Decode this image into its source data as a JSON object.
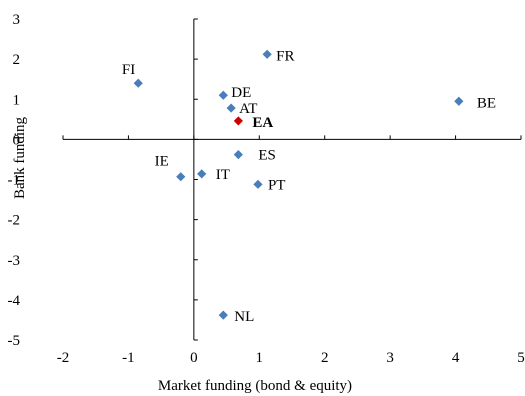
{
  "chart_data": {
    "type": "scatter",
    "title": "",
    "xlabel": "Market funding (bond & equity)",
    "ylabel": "Bank funding",
    "xlim": [
      -2,
      5
    ],
    "ylim": [
      -5,
      3
    ],
    "xticks": [
      "-2",
      "-1",
      "0",
      "1",
      "2",
      "3",
      "4",
      "5"
    ],
    "yticks": [
      "3",
      "2",
      "1",
      "0",
      "-1",
      "-2",
      "-3",
      "-4",
      "-5"
    ],
    "grid": false,
    "points": [
      {
        "label": "FI",
        "x": -0.85,
        "y": 1.4,
        "color": "#4a7ebb"
      },
      {
        "label": "FR",
        "x": 1.12,
        "y": 2.12,
        "color": "#4a7ebb"
      },
      {
        "label": "DE",
        "x": 0.45,
        "y": 1.1,
        "color": "#4a7ebb"
      },
      {
        "label": "AT",
        "x": 0.57,
        "y": 0.78,
        "color": "#4a7ebb"
      },
      {
        "label": "EA",
        "x": 0.68,
        "y": 0.46,
        "color": "#cc0000",
        "bold": true
      },
      {
        "label": "BE",
        "x": 4.05,
        "y": 0.95,
        "color": "#4a7ebb"
      },
      {
        "label": "ES",
        "x": 0.68,
        "y": -0.38,
        "color": "#4a7ebb"
      },
      {
        "label": "IE",
        "x": -0.2,
        "y": -0.93,
        "color": "#4a7ebb"
      },
      {
        "label": "IT",
        "x": 0.12,
        "y": -0.86,
        "color": "#4a7ebb"
      },
      {
        "label": "PT",
        "x": 0.98,
        "y": -1.12,
        "color": "#4a7ebb"
      },
      {
        "label": "NL",
        "x": 0.45,
        "y": -4.38,
        "color": "#4a7ebb"
      }
    ]
  }
}
